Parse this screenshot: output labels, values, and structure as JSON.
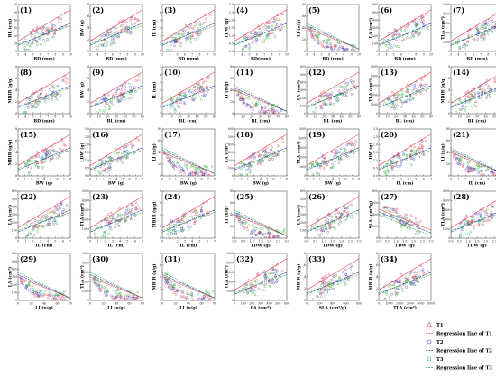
{
  "figure": {
    "panel_count": 34,
    "colors": {
      "T1": "#e8455a",
      "T2": "#2e3fb8",
      "T3": "#2fae3c"
    }
  },
  "legend": {
    "entries": [
      {
        "key": "T1",
        "label": "T1",
        "marker": "triangle",
        "color": "#e8455a"
      },
      {
        "key": "T1_line",
        "label": "Regression line of T1",
        "marker": "line",
        "color": "#e8455a"
      },
      {
        "key": "T2",
        "label": "T2",
        "marker": "circle",
        "color": "#2e3fb8"
      },
      {
        "key": "T2_line",
        "label": "Regression line of T2",
        "marker": "line",
        "color": "#2e3fb8"
      },
      {
        "key": "T3",
        "label": "T3",
        "marker": "circle",
        "color": "#2fae3c"
      },
      {
        "key": "T3_line",
        "label": "Regression line of T3",
        "marker": "line",
        "color": "#2fae3c"
      }
    ]
  },
  "chart_data": [
    {
      "id": "(1)",
      "type": "scatter",
      "xlabel": "BD (mm)",
      "ylabel": "BL (cm)",
      "x_ticks": [
        "3",
        "4",
        "5",
        "6",
        "7",
        "8",
        "9",
        "10"
      ],
      "y_ticks": [
        "0",
        "10",
        "20",
        "30",
        "40",
        "50",
        "60"
      ],
      "xlim": [
        3,
        10
      ],
      "ylim": [
        0,
        60
      ],
      "pattern": "pos",
      "series": [
        "T1",
        "T2",
        "T3"
      ]
    },
    {
      "id": "(2)",
      "type": "scatter",
      "xlabel": "BD (mm)",
      "ylabel": "BW (g)",
      "x_ticks": [
        "3",
        "4",
        "5",
        "6",
        "7",
        "8",
        "9",
        "10"
      ],
      "y_ticks": [
        "0",
        "2",
        "4",
        "6",
        "8"
      ],
      "xlim": [
        3,
        10
      ],
      "ylim": [
        0,
        8
      ],
      "pattern": "pos",
      "series": [
        "T1",
        "T2",
        "T3"
      ]
    },
    {
      "id": "(3)",
      "type": "scatter",
      "xlabel": "BD (mm)",
      "ylabel": "IL (cm)",
      "x_ticks": [
        "3",
        "4",
        "5",
        "6",
        "7",
        "8",
        "9",
        "10"
      ],
      "y_ticks": [
        "1",
        "2",
        "3",
        "4",
        "5",
        "6",
        "7"
      ],
      "xlim": [
        3,
        10
      ],
      "ylim": [
        1,
        7
      ],
      "pattern": "pos",
      "series": [
        "T1",
        "T2",
        "T3"
      ]
    },
    {
      "id": "(4)",
      "type": "scatter",
      "xlabel": "BD(mm)",
      "ylabel": "LDW (g)",
      "x_ticks": [
        "3",
        "4",
        "5",
        "6",
        "7",
        "8",
        "9",
        "10"
      ],
      "y_ticks": [
        "0.0",
        "0.5",
        "1.0",
        "1.5",
        "2.0",
        "2.5",
        "3.0"
      ],
      "xlim": [
        3,
        10
      ],
      "ylim": [
        0,
        3
      ],
      "pattern": "pos",
      "series": [
        "T1",
        "T2",
        "T3"
      ]
    },
    {
      "id": "(5)",
      "type": "scatter",
      "xlabel": "BD (mm)",
      "ylabel": "LI (n/g)",
      "x_ticks": [
        "3",
        "4",
        "5",
        "6",
        "7",
        "8",
        "9",
        "10"
      ],
      "y_ticks": [
        "0",
        "20",
        "40",
        "60",
        "80"
      ],
      "xlim": [
        3,
        10
      ],
      "ylim": [
        0,
        80
      ],
      "pattern": "decay",
      "series": [
        "T1",
        "T2",
        "T3"
      ]
    },
    {
      "id": "(6)",
      "type": "scatter",
      "xlabel": "BD (mm)",
      "ylabel": "LA (cm²)",
      "x_ticks": [
        "3",
        "4",
        "5",
        "6",
        "7",
        "8",
        "9",
        "10"
      ],
      "y_ticks": [
        "0",
        "100",
        "200",
        "300",
        "400",
        "500",
        "600"
      ],
      "xlim": [
        3,
        10
      ],
      "ylim": [
        0,
        600
      ],
      "pattern": "pos",
      "series": [
        "T1",
        "T2",
        "T3"
      ]
    },
    {
      "id": "(7)",
      "type": "scatter",
      "xlabel": "BD (mm)",
      "ylabel": "TLA (cm²)",
      "x_ticks": [
        "3",
        "4",
        "5",
        "6",
        "7",
        "8",
        "9",
        "10"
      ],
      "y_ticks": [
        "0",
        "1000",
        "2000",
        "3000",
        "4000",
        "5000"
      ],
      "xlim": [
        3,
        10
      ],
      "ylim": [
        0,
        5000
      ],
      "pattern": "pos",
      "series": [
        "T1",
        "T2",
        "T3"
      ]
    },
    {
      "id": "(8)",
      "type": "scatter",
      "xlabel": "BD (mm)",
      "ylabel": "MBIR (g/g)",
      "x_ticks": [
        "3",
        "4",
        "5",
        "6",
        "7",
        "8",
        "9",
        "10"
      ],
      "y_ticks": [
        "0",
        "2",
        "4",
        "6",
        "8"
      ],
      "xlim": [
        3,
        10
      ],
      "ylim": [
        0,
        8
      ],
      "pattern": "pos",
      "series": [
        "T1",
        "T2",
        "T3"
      ]
    },
    {
      "id": "(9)",
      "type": "scatter",
      "xlabel": "BL (cm)",
      "ylabel": "BW (g)",
      "x_ticks": [
        "0",
        "10",
        "20",
        "30",
        "40",
        "50",
        "60"
      ],
      "y_ticks": [
        "0",
        "2",
        "4",
        "6",
        "8"
      ],
      "xlim": [
        0,
        60
      ],
      "ylim": [
        0,
        8
      ],
      "pattern": "pos",
      "series": [
        "T1",
        "T2",
        "T3"
      ]
    },
    {
      "id": "(10)",
      "type": "scatter",
      "xlabel": "BL (cm)",
      "ylabel": "IL (cm)",
      "x_ticks": [
        "0",
        "10",
        "20",
        "30",
        "40",
        "50",
        "60"
      ],
      "y_ticks": [
        "1",
        "2",
        "3",
        "4",
        "5",
        "6",
        "7"
      ],
      "xlim": [
        0,
        60
      ],
      "ylim": [
        1,
        7
      ],
      "pattern": "pos",
      "series": [
        "T1",
        "T2",
        "T3"
      ]
    },
    {
      "id": "(11)",
      "type": "scatter",
      "xlabel": "BL (cm)",
      "ylabel": "LI (n/g)",
      "x_ticks": [
        "0",
        "10",
        "20",
        "30",
        "40",
        "50",
        "60"
      ],
      "y_ticks": [
        "0",
        "20",
        "40",
        "60",
        "80"
      ],
      "xlim": [
        0,
        60
      ],
      "ylim": [
        0,
        80
      ],
      "pattern": "decay",
      "series": [
        "T1",
        "T2",
        "T3"
      ]
    },
    {
      "id": "(12)",
      "type": "scatter",
      "xlabel": "BL (cm)",
      "ylabel": "LA (cm²)",
      "x_ticks": [
        "0",
        "10",
        "20",
        "30",
        "40",
        "50",
        "60"
      ],
      "y_ticks": [
        "0",
        "100",
        "200",
        "300",
        "400",
        "500",
        "600"
      ],
      "xlim": [
        0,
        60
      ],
      "ylim": [
        0,
        600
      ],
      "pattern": "pos",
      "series": [
        "T1",
        "T2",
        "T3"
      ]
    },
    {
      "id": "(13)",
      "type": "scatter",
      "xlabel": "BL (cm)",
      "ylabel": "TLA (cm²)",
      "x_ticks": [
        "0",
        "10",
        "20",
        "30",
        "40",
        "50",
        "60"
      ],
      "y_ticks": [
        "0",
        "1000",
        "2000",
        "3000",
        "4000",
        "5000"
      ],
      "xlim": [
        0,
        60
      ],
      "ylim": [
        0,
        5000
      ],
      "pattern": "pos",
      "series": [
        "T1",
        "T2",
        "T3"
      ]
    },
    {
      "id": "(14)",
      "type": "scatter",
      "xlabel": "BL (cm)",
      "ylabel": "MBIR (g/g)",
      "x_ticks": [
        "0",
        "10",
        "20",
        "30",
        "40",
        "50",
        "60"
      ],
      "y_ticks": [
        "0",
        "2",
        "4",
        "6",
        "8"
      ],
      "xlim": [
        0,
        60
      ],
      "ylim": [
        0,
        8
      ],
      "pattern": "pos",
      "series": [
        "T1",
        "T2",
        "T3"
      ]
    },
    {
      "id": "(15)",
      "type": "scatter",
      "xlabel": "BW (g)",
      "ylabel": "MBIR (g/g)",
      "x_ticks": [
        "0",
        "1",
        "2",
        "3",
        "4",
        "5",
        "6",
        "7",
        "8"
      ],
      "y_ticks": [
        "0",
        "2",
        "4",
        "6",
        "8"
      ],
      "xlim": [
        0,
        8
      ],
      "ylim": [
        0,
        8
      ],
      "pattern": "pos",
      "series": [
        "T1",
        "T2",
        "T3"
      ]
    },
    {
      "id": "(16)",
      "type": "scatter",
      "xlabel": "BW (g)",
      "ylabel": "LDW (g)",
      "x_ticks": [
        "0",
        "1",
        "2",
        "3",
        "4",
        "5",
        "6",
        "7",
        "8"
      ],
      "y_ticks": [
        "0.0",
        "0.5",
        "1.0",
        "1.5",
        "2.0",
        "2.5",
        "3.0"
      ],
      "xlim": [
        0,
        8
      ],
      "ylim": [
        0,
        3
      ],
      "pattern": "pos",
      "series": [
        "T1",
        "T2",
        "T3"
      ]
    },
    {
      "id": "(17)",
      "type": "scatter",
      "xlabel": "BW (g)",
      "ylabel": "LI (n/g)",
      "x_ticks": [
        "0",
        "1",
        "2",
        "3",
        "4",
        "5",
        "6",
        "7",
        "8"
      ],
      "y_ticks": [
        "0",
        "20",
        "40",
        "60",
        "80"
      ],
      "xlim": [
        0,
        8
      ],
      "ylim": [
        0,
        80
      ],
      "pattern": "decay",
      "series": [
        "T1",
        "T2",
        "T3"
      ]
    },
    {
      "id": "(18)",
      "type": "scatter",
      "xlabel": "BW (g)",
      "ylabel": "LA (cm²)",
      "x_ticks": [
        "0",
        "1",
        "2",
        "3",
        "4",
        "5",
        "6",
        "7",
        "8"
      ],
      "y_ticks": [
        "0",
        "100",
        "200",
        "300",
        "400",
        "500",
        "600"
      ],
      "xlim": [
        0,
        8
      ],
      "ylim": [
        0,
        600
      ],
      "pattern": "pos",
      "series": [
        "T1",
        "T2",
        "T3"
      ]
    },
    {
      "id": "(19)",
      "type": "scatter",
      "xlabel": "BW (g)",
      "ylabel": "TLA (cm²)",
      "x_ticks": [
        "0",
        "1",
        "2",
        "3",
        "4",
        "5",
        "6",
        "7",
        "8"
      ],
      "y_ticks": [
        "0",
        "1000",
        "2000",
        "3000",
        "4000",
        "5000"
      ],
      "xlim": [
        0,
        8
      ],
      "ylim": [
        0,
        5000
      ],
      "pattern": "pos",
      "series": [
        "T1",
        "T2",
        "T3"
      ]
    },
    {
      "id": "(20)",
      "type": "scatter",
      "xlabel": "IL (cm)",
      "ylabel": "LDW (g)",
      "x_ticks": [
        "0",
        "1",
        "2",
        "3",
        "4",
        "5",
        "6",
        "7"
      ],
      "y_ticks": [
        "0.0",
        "0.5",
        "1.0",
        "1.5",
        "2.0",
        "2.5",
        "3.0"
      ],
      "xlim": [
        0,
        7
      ],
      "ylim": [
        0,
        3
      ],
      "pattern": "pos",
      "series": [
        "T1",
        "T2",
        "T3"
      ]
    },
    {
      "id": "(21)",
      "type": "scatter",
      "xlabel": "IL (cm)",
      "ylabel": "LI (n/g)",
      "x_ticks": [
        "0",
        "1",
        "2",
        "3",
        "4",
        "5",
        "6",
        "7"
      ],
      "y_ticks": [
        "0",
        "20",
        "40",
        "60",
        "80"
      ],
      "xlim": [
        0,
        7
      ],
      "ylim": [
        0,
        80
      ],
      "pattern": "decay",
      "series": [
        "T1",
        "T2",
        "T3"
      ]
    },
    {
      "id": "(22)",
      "type": "scatter",
      "xlabel": "IL (cm)",
      "ylabel": "LA (cm²)",
      "x_ticks": [
        "0",
        "1",
        "2",
        "3",
        "4",
        "5",
        "6",
        "7"
      ],
      "y_ticks": [
        "0",
        "100",
        "200",
        "300",
        "400",
        "500",
        "600"
      ],
      "xlim": [
        0,
        7
      ],
      "ylim": [
        0,
        600
      ],
      "pattern": "pos",
      "series": [
        "T1",
        "T2",
        "T3"
      ]
    },
    {
      "id": "(23)",
      "type": "scatter",
      "xlabel": "IL (cm)",
      "ylabel": "TLA (cm²)",
      "x_ticks": [
        "0",
        "1",
        "2",
        "3",
        "4",
        "5",
        "6",
        "7"
      ],
      "y_ticks": [
        "0",
        "1000",
        "2000",
        "3000",
        "4000",
        "5000"
      ],
      "xlim": [
        0,
        7
      ],
      "ylim": [
        0,
        5000
      ],
      "pattern": "pos",
      "series": [
        "T1",
        "T2",
        "T3"
      ]
    },
    {
      "id": "(24)",
      "type": "scatter",
      "xlabel": "IL (cm)",
      "ylabel": "MBIR (g/g)",
      "x_ticks": [
        "0",
        "1",
        "2",
        "3",
        "4",
        "5",
        "6",
        "7"
      ],
      "y_ticks": [
        "0",
        "2",
        "4",
        "6",
        "8"
      ],
      "xlim": [
        0,
        7
      ],
      "ylim": [
        0,
        8
      ],
      "pattern": "pos",
      "series": [
        "T1",
        "T2",
        "T3"
      ]
    },
    {
      "id": "(25)",
      "type": "scatter",
      "xlabel": "LDW (g)",
      "ylabel": "LI (n/g)",
      "x_ticks": [
        "0.0",
        "0.5",
        "1.0",
        "1.5",
        "2.0",
        "2.5",
        "3.0"
      ],
      "y_ticks": [
        "0",
        "20",
        "40",
        "60",
        "80"
      ],
      "xlim": [
        0,
        3
      ],
      "ylim": [
        0,
        80
      ],
      "pattern": "decay",
      "series": [
        "T1",
        "T2",
        "T3"
      ]
    },
    {
      "id": "(26)",
      "type": "scatter",
      "xlabel": "LDW (g)",
      "ylabel": "LA (cm²)",
      "x_ticks": [
        "0.0",
        "0.5",
        "1.0",
        "1.5",
        "2.0",
        "2.5",
        "3.0"
      ],
      "y_ticks": [
        "0",
        "100",
        "200",
        "300",
        "400",
        "500",
        "600"
      ],
      "xlim": [
        0,
        3
      ],
      "ylim": [
        0,
        600
      ],
      "pattern": "pos",
      "series": [
        "T1",
        "T2",
        "T3"
      ]
    },
    {
      "id": "(27)",
      "type": "scatter",
      "xlabel": "LDW (g)",
      "ylabel": "SLA (cm²/g)",
      "x_ticks": [
        "0.0",
        "0.5",
        "1.0",
        "1.5",
        "2.0",
        "2.5",
        "3.0"
      ],
      "y_ticks": [
        "0",
        "200",
        "400",
        "600",
        "800"
      ],
      "xlim": [
        0,
        3
      ],
      "ylim": [
        0,
        800
      ],
      "pattern": "neg",
      "series": [
        "T1",
        "T2",
        "T3"
      ]
    },
    {
      "id": "(28)",
      "type": "scatter",
      "xlabel": "LDW (g)",
      "ylabel": "TLA (cm²)",
      "x_ticks": [
        "0.0",
        "0.5",
        "1.0",
        "1.5",
        "2.0",
        "2.5",
        "3.0"
      ],
      "y_ticks": [
        "0",
        "1000",
        "2000",
        "3000",
        "4000",
        "5000"
      ],
      "xlim": [
        0,
        3
      ],
      "ylim": [
        0,
        5000
      ],
      "pattern": "pos",
      "series": [
        "T1",
        "T2",
        "T3"
      ]
    },
    {
      "id": "(29)",
      "type": "scatter",
      "xlabel": "LI (n/g)",
      "ylabel": "LA (cm²)",
      "x_ticks": [
        "0",
        "20",
        "40",
        "60",
        "80"
      ],
      "y_ticks": [
        "0",
        "100",
        "200",
        "300",
        "400",
        "500",
        "600"
      ],
      "xlim": [
        0,
        80
      ],
      "ylim": [
        0,
        600
      ],
      "pattern": "decay",
      "series": [
        "T1",
        "T2",
        "T3"
      ]
    },
    {
      "id": "(30)",
      "type": "scatter",
      "xlabel": "LI (n/g)",
      "ylabel": "TLA (cm²)",
      "x_ticks": [
        "0",
        "20",
        "40",
        "60",
        "80"
      ],
      "y_ticks": [
        "0",
        "1000",
        "2000",
        "3000",
        "4000",
        "5000"
      ],
      "xlim": [
        0,
        80
      ],
      "ylim": [
        0,
        5000
      ],
      "pattern": "decay",
      "series": [
        "T1",
        "T2",
        "T3"
      ]
    },
    {
      "id": "(31)",
      "type": "scatter",
      "xlabel": "LI (n/g)",
      "ylabel": "MBIR (g/g)",
      "x_ticks": [
        "0",
        "20",
        "40",
        "60",
        "80"
      ],
      "y_ticks": [
        "0",
        "2",
        "4",
        "6",
        "8"
      ],
      "xlim": [
        0,
        80
      ],
      "ylim": [
        0,
        8
      ],
      "pattern": "decay",
      "series": [
        "T1",
        "T2",
        "T3"
      ]
    },
    {
      "id": "(32)",
      "type": "scatter",
      "xlabel": "LA (cm²)",
      "ylabel": "TLA (cm²)",
      "x_ticks": [
        "0",
        "100",
        "200",
        "300",
        "400",
        "500",
        "600"
      ],
      "y_ticks": [
        "0",
        "1000",
        "2000",
        "3000",
        "4000",
        "5000"
      ],
      "xlim": [
        0,
        600
      ],
      "ylim": [
        0,
        5000
      ],
      "pattern": "pos",
      "series": [
        "T1",
        "T2",
        "T3"
      ]
    },
    {
      "id": "(33)",
      "type": "scatter",
      "xlabel": "SLA (cm²/g)",
      "ylabel": "MBIR (g/g)",
      "x_ticks": [
        "0",
        "200",
        "400",
        "600",
        "800"
      ],
      "y_ticks": [
        "0",
        "2",
        "4",
        "6",
        "8"
      ],
      "xlim": [
        0,
        800
      ],
      "ylim": [
        0,
        8
      ],
      "pattern": "pos",
      "series": [
        "T1",
        "T2",
        "T3"
      ]
    },
    {
      "id": "(34)",
      "type": "scatter",
      "xlabel": "TLA (cm²)",
      "ylabel": "MBIR (g/g)",
      "x_ticks": [
        "0",
        "1000",
        "2000",
        "3000",
        "4000",
        "5000"
      ],
      "y_ticks": [
        "0",
        "2",
        "4",
        "6",
        "8"
      ],
      "xlim": [
        0,
        5000
      ],
      "ylim": [
        0,
        8
      ],
      "pattern": "pos",
      "series": [
        "T1",
        "T2",
        "T3"
      ]
    }
  ]
}
